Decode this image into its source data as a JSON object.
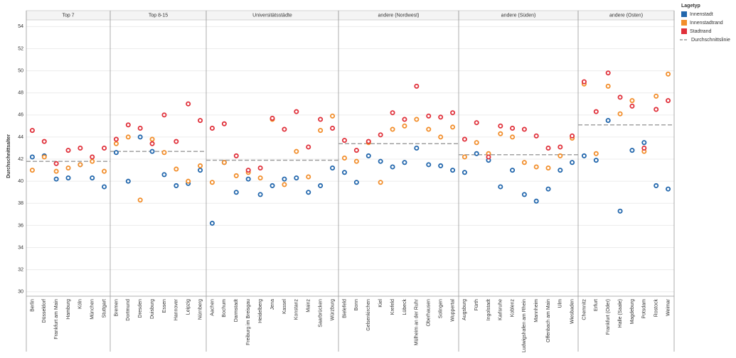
{
  "chart_data": {
    "type": "dot",
    "ylabel": "Durchschnittsalter",
    "ylim": [
      29.6,
      54.6
    ],
    "yticks": [
      30,
      32,
      34,
      36,
      38,
      40,
      42,
      44,
      46,
      48,
      50,
      52,
      54
    ],
    "grid": true,
    "legend_title": "Lagetyp",
    "legend_position": "right",
    "series": [
      {
        "name": "Innenstadt",
        "color": "#2166ac"
      },
      {
        "name": "Innenstadtrand",
        "color": "#f28e2b"
      },
      {
        "name": "Stadtrand",
        "color": "#e0303a"
      }
    ],
    "average_name": "Durchschnittslinie",
    "average_color": "#999999",
    "panels": [
      {
        "title": "Top 7",
        "average": 41.8,
        "categories": [
          "Berlin",
          "Düsseldorf",
          "Frankfurt am Main",
          "Hamburg",
          "Köln",
          "München",
          "Stuttgart"
        ],
        "values": [
          [
            42.2,
            42.3,
            40.2,
            40.3,
            41.5,
            40.3,
            39.5
          ],
          [
            41.0,
            42.2,
            40.9,
            41.2,
            41.5,
            41.8,
            40.9
          ],
          [
            44.6,
            43.6,
            41.6,
            42.8,
            43.0,
            42.2,
            43.0
          ]
        ]
      },
      {
        "title": "Top 8-15",
        "average": 42.7,
        "categories": [
          "Bremen",
          "Dortmund",
          "Dresden",
          "Duisburg",
          "Essen",
          "Hannover",
          "Leipzig",
          "Nürnberg"
        ],
        "values": [
          [
            42.6,
            40.0,
            44.0,
            42.7,
            40.6,
            39.6,
            39.8,
            41.0
          ],
          [
            43.4,
            44.0,
            38.3,
            43.8,
            42.6,
            41.1,
            40.0,
            41.4
          ],
          [
            43.8,
            45.1,
            44.8,
            43.4,
            46.0,
            43.6,
            47.0,
            45.5
          ]
        ]
      },
      {
        "title": "Universitätsstädte",
        "average": 41.9,
        "categories": [
          "Aachen",
          "Bochum",
          "Darmstadt",
          "Freiburg im Breisgau",
          "Heidelberg",
          "Jena",
          "Kassel",
          "Konstanz",
          "Mainz",
          "Saarbrücken",
          "Würzburg"
        ],
        "values": [
          [
            36.2,
            41.7,
            39.0,
            40.2,
            38.8,
            39.6,
            40.2,
            40.3,
            39.0,
            39.6,
            41.2
          ],
          [
            39.9,
            41.7,
            40.5,
            40.8,
            40.3,
            45.6,
            39.7,
            42.7,
            40.4,
            44.6,
            45.9
          ],
          [
            44.8,
            45.2,
            42.3,
            41.0,
            41.2,
            45.7,
            44.7,
            46.3,
            43.1,
            45.6,
            44.8
          ]
        ]
      },
      {
        "title": "andere (Nordwest)",
        "average": 43.4,
        "categories": [
          "Bielefeld",
          "Bonn",
          "Gelsenkirchen",
          "Kiel",
          "Krefeld",
          "Lübeck",
          "Mülheim an der Ruhr",
          "Oberhausen",
          "Solingen",
          "Wuppertal"
        ],
        "values": [
          [
            40.8,
            39.9,
            42.3,
            41.8,
            41.3,
            41.7,
            43.0,
            41.5,
            41.4,
            41.0
          ],
          [
            42.1,
            41.8,
            43.5,
            39.9,
            44.7,
            45.0,
            45.6,
            44.7,
            44.0,
            44.9
          ],
          [
            43.7,
            42.8,
            43.6,
            44.2,
            46.2,
            45.6,
            48.6,
            45.9,
            45.8,
            46.2
          ]
        ]
      },
      {
        "title": "andere (Süden)",
        "average": 42.4,
        "categories": [
          "Augsburg",
          "Fürth",
          "Ingolstadt",
          "Karlsruhe",
          "Koblenz",
          "Ludwigshafen am Rhein",
          "Mannheim",
          "Offenbach am Main",
          "Ulm",
          "Wiesbaden"
        ],
        "values": [
          [
            40.8,
            42.5,
            41.9,
            39.5,
            41.0,
            38.8,
            38.2,
            39.3,
            41.0,
            41.7
          ],
          [
            42.2,
            43.5,
            42.5,
            44.3,
            44.0,
            41.7,
            41.3,
            41.2,
            42.3,
            43.9
          ],
          [
            43.8,
            45.3,
            42.2,
            45.0,
            44.8,
            44.7,
            44.1,
            43.0,
            43.1,
            44.1
          ]
        ]
      },
      {
        "title": "andere (Osten)",
        "average": 45.1,
        "categories": [
          "Chemnitz",
          "Erfurt",
          "Frankfurt (Oder)",
          "Halle (Saale)",
          "Magdeburg",
          "Potsdam",
          "Rostock",
          "Weimar"
        ],
        "values": [
          [
            42.3,
            41.9,
            45.5,
            37.3,
            42.8,
            43.5,
            39.6,
            39.3
          ],
          [
            48.8,
            42.5,
            48.6,
            46.1,
            47.3,
            42.7,
            47.7,
            49.7
          ],
          [
            49.0,
            46.3,
            49.8,
            47.6,
            46.8,
            43.0,
            46.5,
            47.3
          ]
        ]
      }
    ]
  }
}
